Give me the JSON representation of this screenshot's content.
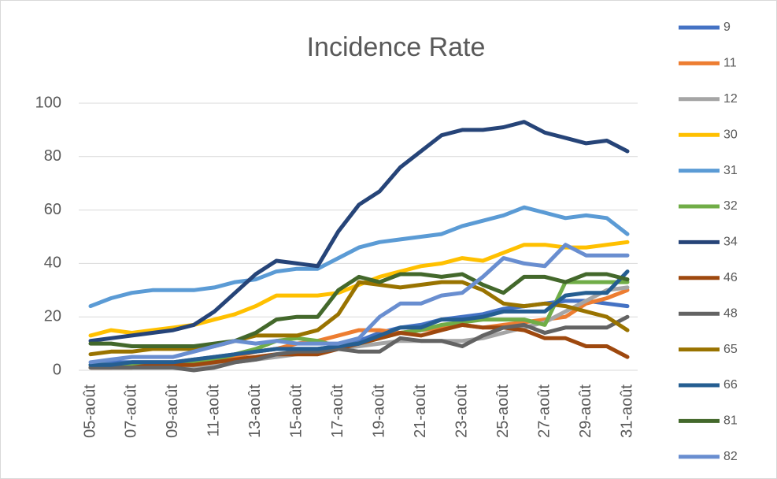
{
  "chart_data": {
    "type": "line",
    "title": "Incidence Rate",
    "categories": [
      "05-août",
      null,
      "07-août",
      null,
      "09-août",
      null,
      "11-août",
      null,
      "13-août",
      null,
      "15-août",
      null,
      "17-août",
      null,
      "19-août",
      null,
      "21-août",
      null,
      "23-août",
      null,
      "25-août",
      null,
      "27-août",
      null,
      "29-août",
      null,
      "31-août"
    ],
    "ylim": [
      0,
      100
    ],
    "yticks": [
      0,
      20,
      40,
      60,
      80,
      100
    ],
    "grid": true,
    "legend": "right",
    "series": [
      {
        "name": "9",
        "color": "#4472c4",
        "values": [
          2,
          3,
          3,
          3,
          3,
          4,
          5,
          6,
          7,
          8,
          8,
          8,
          9,
          11,
          14,
          16,
          17,
          19,
          20,
          21,
          23,
          24,
          25,
          26,
          26,
          25,
          24
        ]
      },
      {
        "name": "11",
        "color": "#ed7d31",
        "values": [
          1,
          1,
          2,
          2,
          2,
          2,
          3,
          5,
          7,
          8,
          10,
          11,
          13,
          15,
          15,
          14,
          15,
          16,
          17,
          16,
          17,
          18,
          19,
          20,
          25,
          27,
          30
        ]
      },
      {
        "name": "12",
        "color": "#a5a5a5",
        "values": [
          1,
          1,
          1,
          1,
          1,
          1,
          2,
          3,
          4,
          5,
          6,
          7,
          8,
          9,
          10,
          11,
          11,
          11,
          11,
          12,
          14,
          16,
          18,
          22,
          26,
          30,
          31
        ]
      },
      {
        "name": "30",
        "color": "#ffc000",
        "values": [
          13,
          15,
          14,
          15,
          16,
          17,
          19,
          21,
          24,
          28,
          28,
          28,
          29,
          32,
          35,
          37,
          39,
          40,
          42,
          41,
          44,
          47,
          47,
          46,
          46,
          47,
          48
        ]
      },
      {
        "name": "31",
        "color": "#5b9bd5",
        "values": [
          24,
          27,
          29,
          30,
          30,
          30,
          31,
          33,
          34,
          37,
          38,
          38,
          42,
          46,
          48,
          49,
          50,
          51,
          54,
          56,
          58,
          61,
          59,
          57,
          58,
          57,
          51
        ]
      },
      {
        "name": "32",
        "color": "#70ad47",
        "values": [
          2,
          2,
          2,
          2,
          2,
          3,
          4,
          6,
          8,
          11,
          12,
          11,
          9,
          10,
          12,
          14,
          15,
          17,
          18,
          19,
          19,
          19,
          17,
          33,
          33,
          33,
          33
        ]
      },
      {
        "name": "34",
        "color": "#264478",
        "values": [
          11,
          12,
          13,
          14,
          15,
          17,
          22,
          29,
          36,
          41,
          40,
          39,
          52,
          62,
          67,
          76,
          82,
          88,
          90,
          90,
          91,
          93,
          89,
          87,
          85,
          86,
          82
        ]
      },
      {
        "name": "46",
        "color": "#9e480e",
        "values": [
          1,
          1,
          1,
          2,
          2,
          2,
          3,
          4,
          5,
          6,
          6,
          6,
          8,
          10,
          12,
          14,
          13,
          15,
          17,
          16,
          16,
          15,
          12,
          12,
          9,
          9,
          5
        ]
      },
      {
        "name": "48",
        "color": "#636363",
        "values": [
          1,
          1,
          1,
          1,
          1,
          0,
          1,
          3,
          4,
          6,
          7,
          7,
          8,
          7,
          7,
          12,
          11,
          11,
          9,
          13,
          16,
          17,
          14,
          16,
          16,
          16,
          20
        ]
      },
      {
        "name": "65",
        "color": "#997300",
        "values": [
          6,
          7,
          7,
          8,
          8,
          8,
          9,
          11,
          13,
          13,
          13,
          15,
          21,
          33,
          32,
          31,
          32,
          33,
          33,
          30,
          25,
          24,
          25,
          24,
          22,
          20,
          15
        ]
      },
      {
        "name": "66",
        "color": "#255e91",
        "values": [
          2,
          2,
          3,
          3,
          3,
          4,
          5,
          6,
          7,
          8,
          8,
          8,
          9,
          10,
          13,
          16,
          16,
          19,
          19,
          20,
          22,
          22,
          22,
          28,
          29,
          29,
          37
        ]
      },
      {
        "name": "81",
        "color": "#43682b",
        "values": [
          10,
          10,
          9,
          9,
          9,
          9,
          10,
          11,
          14,
          19,
          20,
          20,
          30,
          35,
          33,
          36,
          36,
          35,
          36,
          32,
          29,
          35,
          35,
          33,
          36,
          36,
          34
        ]
      },
      {
        "name": "82",
        "color": "#698ed0",
        "values": [
          3,
          4,
          5,
          5,
          5,
          7,
          9,
          11,
          10,
          11,
          10,
          10,
          10,
          12,
          20,
          25,
          25,
          28,
          29,
          35,
          42,
          40,
          39,
          47,
          43,
          43,
          43
        ]
      }
    ]
  }
}
